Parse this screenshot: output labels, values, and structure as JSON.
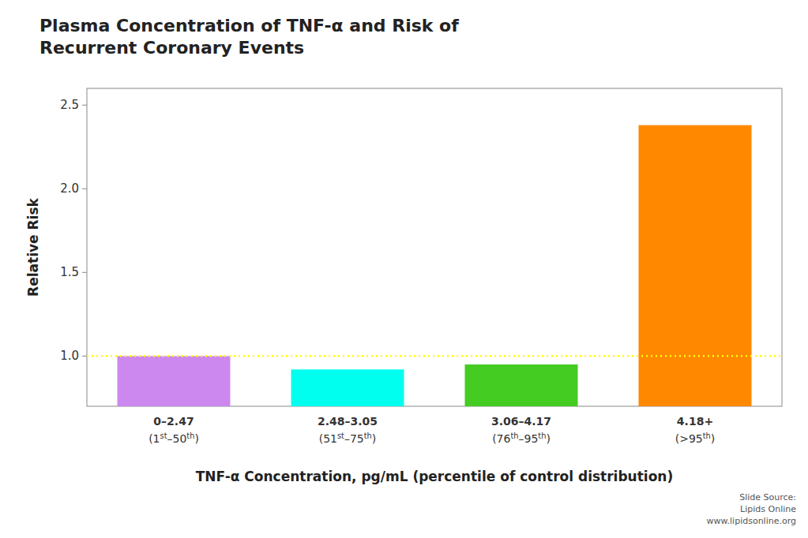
{
  "chart_data": {
    "type": "bar",
    "title": "Plasma Concentration of TNF-α and Risk of\nRecurrent Coronary Events",
    "categories": [
      "0–2.47\n(1st–50th)",
      "2.48–3.05\n(51st–75th)",
      "3.06–4.17\n(76th–95th)",
      "4.18+\n(>95th)"
    ],
    "values": [
      1.0,
      0.92,
      0.95,
      2.38
    ],
    "colors": [
      "#CC88EE",
      "#00FFEE",
      "#44CC22",
      "#FF8800"
    ],
    "xlabel": "TNF-α Concentration, pg/mL (percentile of control distribution)",
    "ylabel": "Relative Risk",
    "ylim": [
      0.7,
      2.6
    ],
    "yticks": [
      {
        "value": 1.0,
        "label": "1.0"
      },
      {
        "value": 1.5,
        "label": "1.5"
      },
      {
        "value": 2.0,
        "label": "2.0"
      },
      {
        "value": 2.5,
        "label": "2.5"
      }
    ],
    "reference_line": {
      "value": 1.0,
      "color": "#FFFF00"
    },
    "grid": false,
    "annotations": [
      "Slide Source:\nLipids Online\nwww.lipidsonline.org"
    ]
  }
}
